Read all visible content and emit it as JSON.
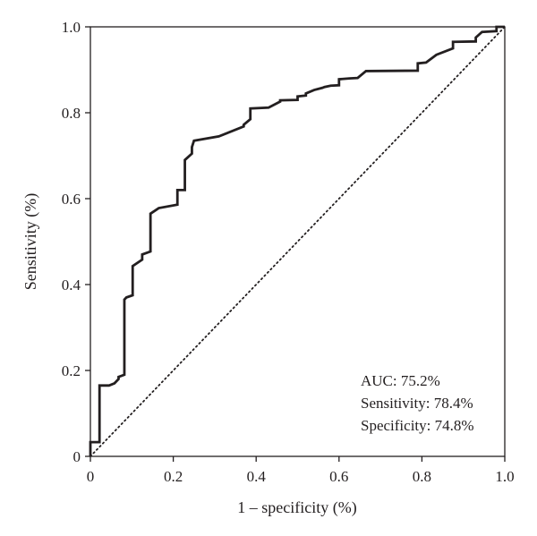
{
  "chart_data": {
    "type": "line",
    "title": "",
    "xlabel": "1 – specificity (%)",
    "ylabel": "Sensitivity (%)",
    "xlim": [
      0,
      1.0
    ],
    "ylim": [
      0,
      1.0
    ],
    "x_ticks": [
      "0",
      "0.2",
      "0.4",
      "0.6",
      "0.8",
      "1.0"
    ],
    "y_ticks": [
      "0",
      "0.2",
      "0.4",
      "0.6",
      "0.8",
      "1.0"
    ],
    "grid": false,
    "legend": "none",
    "annotations": [
      "AUC: 75.2%",
      "Sensitivity: 78.4%",
      "Specificity: 74.8%"
    ],
    "series": [
      {
        "style": "solid",
        "color": "#231f20",
        "x": [
          0,
          0,
          0.022,
          0.022,
          0.045,
          0.058,
          0.068,
          0.068,
          0.082,
          0.082,
          0.087,
          0.102,
          0.102,
          0.125,
          0.125,
          0.145,
          0.145,
          0.165,
          0.21,
          0.21,
          0.228,
          0.228,
          0.245,
          0.245,
          0.25,
          0.31,
          0.37,
          0.37,
          0.386,
          0.386,
          0.43,
          0.458,
          0.458,
          0.5,
          0.5,
          0.52,
          0.52,
          0.54,
          0.56,
          0.565,
          0.58,
          0.6,
          0.6,
          0.625,
          0.645,
          0.665,
          0.79,
          0.79,
          0.81,
          0.835,
          0.875,
          0.875,
          0.93,
          0.93,
          0.945,
          0.98,
          0.98,
          1.0
        ],
        "y": [
          0,
          0.033,
          0.033,
          0.165,
          0.165,
          0.17,
          0.18,
          0.185,
          0.19,
          0.365,
          0.37,
          0.375,
          0.443,
          0.458,
          0.47,
          0.477,
          0.565,
          0.578,
          0.586,
          0.62,
          0.62,
          0.69,
          0.705,
          0.72,
          0.735,
          0.745,
          0.768,
          0.772,
          0.785,
          0.81,
          0.812,
          0.826,
          0.829,
          0.83,
          0.838,
          0.84,
          0.845,
          0.853,
          0.858,
          0.86,
          0.863,
          0.864,
          0.878,
          0.88,
          0.881,
          0.897,
          0.898,
          0.915,
          0.917,
          0.935,
          0.95,
          0.965,
          0.966,
          0.975,
          0.988,
          0.99,
          1.0,
          1.0
        ]
      },
      {
        "style": "dotted",
        "color": "#231f20",
        "x": [
          0,
          1.0
        ],
        "y": [
          0,
          1.0
        ]
      }
    ]
  }
}
